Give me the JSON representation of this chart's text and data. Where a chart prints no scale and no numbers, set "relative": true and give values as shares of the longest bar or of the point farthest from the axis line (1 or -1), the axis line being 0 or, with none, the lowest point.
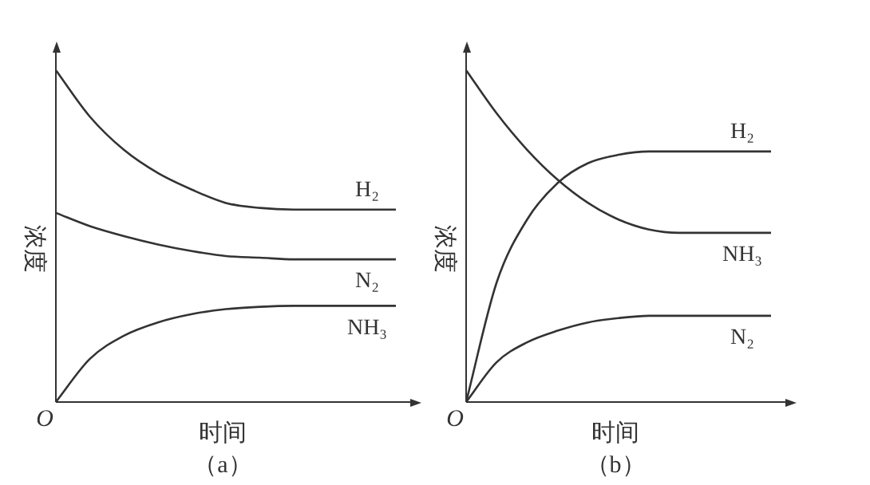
{
  "chart_data": [
    {
      "type": "line",
      "title": "（a）",
      "xlabel": "时间",
      "ylabel": "浓度",
      "annotations": [
        "O"
      ],
      "relative": true,
      "legend": false,
      "marker": "none",
      "line_style": "solid",
      "categories": [
        null,
        null,
        null,
        null,
        null,
        null,
        null,
        null,
        null,
        null,
        null
      ],
      "series": [
        {
          "name": "H₂",
          "color": "#333333",
          "values": [
            1.0,
            0.86,
            0.76,
            0.69,
            0.64,
            0.6,
            0.585,
            0.58,
            0.58,
            0.58,
            0.58
          ]
        },
        {
          "name": "N₂",
          "color": "#333333",
          "values": [
            0.57,
            0.53,
            0.5,
            0.475,
            0.455,
            0.44,
            0.435,
            0.43,
            0.43,
            0.43,
            0.43
          ]
        },
        {
          "name": "NH₃",
          "color": "#333333",
          "values": [
            0,
            0.13,
            0.2,
            0.24,
            0.265,
            0.28,
            0.287,
            0.29,
            0.29,
            0.29,
            0.29
          ]
        }
      ]
    },
    {
      "type": "line",
      "title": "（b）",
      "xlabel": "时间",
      "ylabel": "浓度",
      "annotations": [
        "O"
      ],
      "relative": true,
      "legend": false,
      "marker": "none",
      "line_style": "solid",
      "categories": [
        null,
        null,
        null,
        null,
        null,
        null,
        null,
        null,
        null,
        null,
        null
      ],
      "series": [
        {
          "name": "H₂",
          "color": "#333333",
          "values": [
            0,
            0.36,
            0.55,
            0.66,
            0.72,
            0.745,
            0.755,
            0.755,
            0.755,
            0.755,
            0.755
          ]
        },
        {
          "name": "NH₃",
          "color": "#333333",
          "values": [
            1.0,
            0.87,
            0.76,
            0.67,
            0.6,
            0.55,
            0.52,
            0.51,
            0.51,
            0.51,
            0.51
          ]
        },
        {
          "name": "N₂",
          "color": "#333333",
          "values": [
            0,
            0.12,
            0.18,
            0.215,
            0.24,
            0.253,
            0.26,
            0.26,
            0.26,
            0.26,
            0.26
          ]
        }
      ]
    }
  ]
}
